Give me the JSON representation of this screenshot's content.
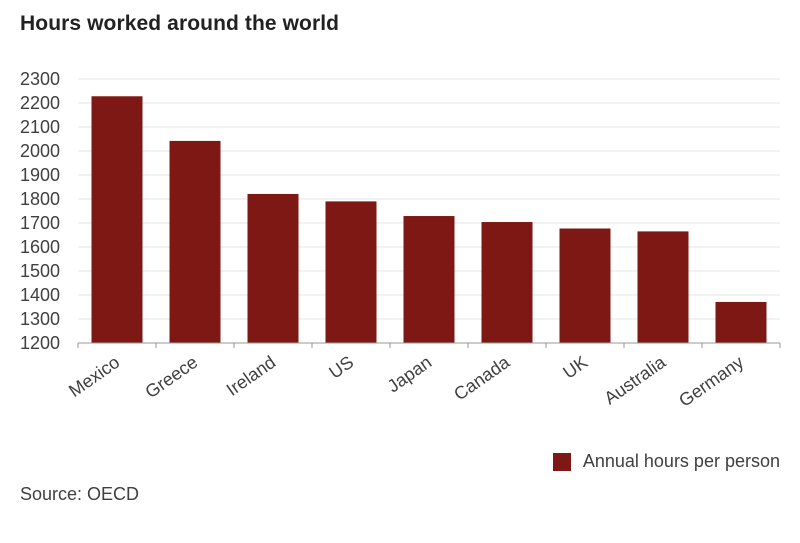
{
  "chart_data": {
    "type": "bar",
    "title": "Hours worked around the world",
    "categories": [
      "Mexico",
      "Greece",
      "Ireland",
      "US",
      "Japan",
      "Canada",
      "UK",
      "Australia",
      "Germany"
    ],
    "series": [
      {
        "name": "Annual hours per person",
        "values": [
          2228,
          2042,
          1821,
          1790,
          1729,
          1704,
          1677,
          1665,
          1371
        ],
        "color": "#7d1814"
      }
    ],
    "xlabel": "",
    "ylabel": "",
    "ylim": [
      1200,
      2300
    ],
    "yticks": [
      1200,
      1300,
      1400,
      1500,
      1600,
      1700,
      1800,
      1900,
      2000,
      2100,
      2200,
      2300
    ],
    "grid": true,
    "legend_position": "bottom-right",
    "source": "Source: OECD"
  },
  "colors": {
    "bar": "#7d1814",
    "grid": "#e6e6e6",
    "axis": "#999999",
    "text": "#404040"
  }
}
